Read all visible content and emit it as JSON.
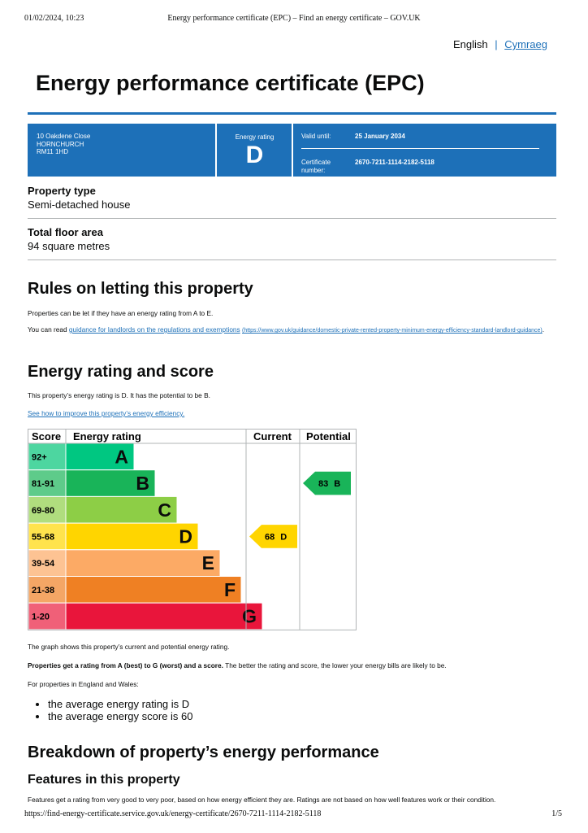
{
  "print_header": {
    "datetime": "01/02/2024, 10:23",
    "title": "Energy performance certificate (EPC) – Find an energy certificate – GOV.UK"
  },
  "language": {
    "current": "English",
    "separator": "|",
    "other": "Cymraeg"
  },
  "title": "Energy performance certificate (EPC)",
  "summary": {
    "address": [
      "10 Oakdene Close",
      "HORNCHURCH",
      "RM11 1HD"
    ],
    "rating_label": "Energy rating",
    "rating": "D",
    "valid_until_label": "Valid until:",
    "valid_until": "25 January 2034",
    "certificate_label": "Certificate number:",
    "certificate_number": "2670-7211-1114-2182-5118"
  },
  "property": [
    {
      "label": "Property type",
      "value": "Semi-detached house"
    },
    {
      "label": "Total floor area",
      "value": "94 square metres"
    }
  ],
  "rules": {
    "heading": "Rules on letting this property",
    "text": "Properties can be let if they have an energy rating from A to E.",
    "link_prefix": "You can read ",
    "link_text": "guidance for landlords on the regulations and exemptions",
    "link_url": "(https://www.gov.uk/guidance/domestic-private-rented-property-minimum-energy-efficiency-standard-landlord-guidance)",
    "link_suffix": "."
  },
  "energy": {
    "heading": "Energy rating and score",
    "text": "This property’s energy rating is D. It has the potential to be B.",
    "link": "See how to improve this property’s energy efficiency.",
    "chart": {
      "headers": [
        "Score",
        "Energy rating",
        "Current",
        "Potential"
      ],
      "bands": [
        {
          "score": "92+",
          "letter": "A"
        },
        {
          "score": "81-91",
          "letter": "B"
        },
        {
          "score": "69-80",
          "letter": "C"
        },
        {
          "score": "55-68",
          "letter": "D"
        },
        {
          "score": "39-54",
          "letter": "E"
        },
        {
          "score": "21-38",
          "letter": "F"
        },
        {
          "score": "1-20",
          "letter": "G"
        }
      ],
      "current": {
        "score": 68,
        "letter": "D"
      },
      "potential": {
        "score": 83,
        "letter": "B"
      }
    },
    "caption": "The graph shows this property’s current and potential energy rating.",
    "scale_bold": "Properties get a rating from A (best) to G (worst) and a score.",
    "scale_text": " The better the rating and score, the lower your energy bills are likely to be.",
    "average_intro": "For properties in England and Wales:",
    "averages": [
      "the average energy rating is D",
      "the average energy score is 60"
    ]
  },
  "breakdown": {
    "heading": "Breakdown of property’s energy performance",
    "subheading": "Features in this property",
    "text": "Features get a rating from very good to very poor, based on how energy efficient they are. Ratings are not based on how well features work or their condition."
  },
  "print_footer": {
    "url": "https://find-energy-certificate.service.gov.uk/energy-certificate/2670-7211-1114-2182-5118",
    "page": "1/5"
  }
}
